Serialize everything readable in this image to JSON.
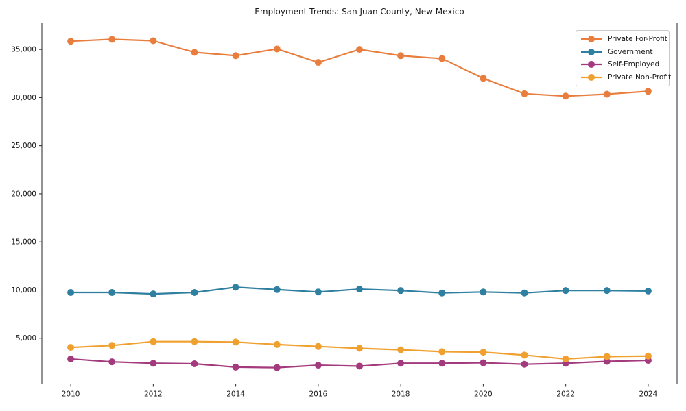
{
  "figure": {
    "title": "Employment Trends: San Juan County, New Mexico",
    "background_color": "#ffffff",
    "axis_color": "#262626",
    "tick_label_color": "#1a1a1a"
  },
  "chart_data": {
    "type": "line",
    "title": "Employment Trends: San Juan County, New Mexico",
    "xlabel": "",
    "ylabel": "",
    "x": [
      2010,
      2011,
      2012,
      2013,
      2014,
      2015,
      2016,
      2017,
      2018,
      2019,
      2020,
      2021,
      2022,
      2023,
      2024
    ],
    "series": [
      {
        "name": "Private For-Profit",
        "color": "#e87d3e",
        "values": [
          35850,
          36050,
          35900,
          34700,
          34350,
          35050,
          33650,
          35000,
          34350,
          34050,
          32000,
          30400,
          30150,
          30350,
          30650
        ]
      },
      {
        "name": "Government",
        "color": "#2e7fa0",
        "values": [
          9750,
          9750,
          9600,
          9750,
          10300,
          10050,
          9800,
          10100,
          9950,
          9700,
          9800,
          9700,
          9950,
          9950,
          9900
        ]
      },
      {
        "name": "Self-Employed",
        "color": "#a33a7d",
        "values": [
          2850,
          2550,
          2400,
          2350,
          2000,
          1950,
          2200,
          2100,
          2400,
          2400,
          2450,
          2300,
          2400,
          2600,
          2700
        ]
      },
      {
        "name": "Private Non-Profit",
        "color": "#f0a02e",
        "values": [
          4050,
          4250,
          4650,
          4650,
          4600,
          4350,
          4150,
          3950,
          3800,
          3600,
          3550,
          3250,
          2850,
          3100,
          3150
        ]
      }
    ],
    "xlim": [
      2009.3,
      2024.7
    ],
    "ylim": [
      250,
      37750
    ],
    "x_ticks": [
      2010,
      2012,
      2014,
      2016,
      2018,
      2020,
      2022,
      2024
    ],
    "x_tick_labels": [
      "2010",
      "2012",
      "2014",
      "2016",
      "2018",
      "2020",
      "2022",
      "2024"
    ],
    "y_ticks": [
      5000,
      10000,
      15000,
      20000,
      25000,
      30000,
      35000
    ],
    "y_tick_labels": [
      "5,000",
      "10,000",
      "15,000",
      "20,000",
      "25,000",
      "30,000",
      "35,000"
    ],
    "grid": false,
    "legend_position": "upper right",
    "marker": "circle"
  }
}
